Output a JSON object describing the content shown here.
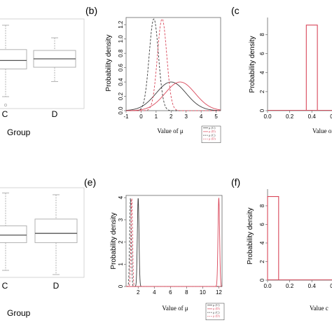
{
  "colors": {
    "black": "#3a3a3a",
    "red": "#d9475a",
    "box_stroke": "#aaaaaa",
    "box_median": "#555555",
    "axis": "#666666"
  },
  "panels": {
    "a_group_label": "Group",
    "a_categories": [
      "C",
      "D"
    ],
    "b_letter": "(b)",
    "c_letter": "(c",
    "d_group_label": "Group",
    "d_categories": [
      "C",
      "D"
    ],
    "e_letter": "(e)",
    "f_letter": "(f)",
    "c_xlabel": "Value of",
    "f_xlabel": "Value c"
  },
  "chart_data": [
    {
      "panel": "a",
      "type": "box",
      "categories": [
        "C",
        "D"
      ],
      "xlabel": "Group",
      "boxes": [
        {
          "category": "C",
          "whisker_low": 0.1,
          "q1": 0.43,
          "median": 0.53,
          "q3": 0.66,
          "whisker_high": 0.95,
          "outlier": 0.0
        },
        {
          "category": "D",
          "whisker_low": 0.28,
          "q1": 0.45,
          "median": 0.55,
          "q3": 0.65,
          "whisker_high": 0.8
        }
      ]
    },
    {
      "panel": "b",
      "type": "line",
      "title": "(b)",
      "xlabel": "Value of μ",
      "ylabel": "Probability density",
      "xlim": [
        -1,
        5.3
      ],
      "ylim": [
        0,
        1.3
      ],
      "xticks": [
        "-1",
        "0",
        "1",
        "2",
        "3",
        "4",
        "5"
      ],
      "yticks": [
        "0.0",
        "0.2",
        "0.4",
        "0.6",
        "0.8",
        "1.0",
        "1.2"
      ],
      "legend_position": "bottom-right",
      "series": [
        {
          "name": "μ (C)",
          "color": "#3a3a3a",
          "dash": false,
          "mean": 2.0,
          "sd": 1.0,
          "peak": 0.4
        },
        {
          "name": "μ (D)",
          "color": "#d9475a",
          "dash": false,
          "mean": 2.6,
          "sd": 1.0,
          "peak": 0.4
        },
        {
          "name": "μ (C)",
          "color": "#3a3a3a",
          "dash": true,
          "mean": 0.85,
          "sd": 0.31,
          "peak": 1.28
        },
        {
          "name": "μ (D)",
          "color": "#d9475a",
          "dash": true,
          "mean": 1.4,
          "sd": 0.31,
          "peak": 1.28
        }
      ]
    },
    {
      "panel": "c",
      "type": "histogram",
      "title": "(c",
      "ylabel": "Probability density",
      "xlabel": "Value of",
      "xlim": [
        0,
        0.62
      ],
      "ylim": [
        0,
        9.8
      ],
      "xticks": [
        "0.0",
        "0.2",
        "0.4",
        "0.6"
      ],
      "yticks": [
        "0",
        "2",
        "4",
        "6",
        "8"
      ],
      "bins": [
        {
          "x0": 0.35,
          "x1": 0.45,
          "height": 9.0
        }
      ]
    },
    {
      "panel": "d",
      "type": "box",
      "categories": [
        "C",
        "D"
      ],
      "xlabel": "Group",
      "boxes": [
        {
          "category": "C",
          "whisker_low": 0.05,
          "q1": 0.38,
          "median": 0.47,
          "q3": 0.58,
          "whisker_high": 0.97
        },
        {
          "category": "D",
          "whisker_low": 0.0,
          "q1": 0.38,
          "median": 0.49,
          "q3": 0.66,
          "whisker_high": 0.95
        }
      ]
    },
    {
      "panel": "e",
      "type": "line",
      "title": "(e)",
      "xlabel": "Value of μ",
      "ylabel": "Probability density",
      "xlim": [
        0.5,
        12.4
      ],
      "ylim": [
        0,
        4.1
      ],
      "xticks": [
        "2",
        "4",
        "6",
        "8",
        "10",
        "12"
      ],
      "yticks": [
        "0",
        "1",
        "2",
        "3",
        "4"
      ],
      "legend_position": "bottom-right",
      "series": [
        {
          "name": "μ (C)",
          "color": "#3a3a3a",
          "dash": false,
          "mean": 2.0,
          "sd": 0.1,
          "peak": 4.0
        },
        {
          "name": "μ (D)",
          "color": "#d9475a",
          "dash": false,
          "mean": 12.0,
          "sd": 0.1,
          "peak": 4.0
        },
        {
          "name": "μ (C)",
          "color": "#3a3a3a",
          "dash": true,
          "mean": 1.05,
          "sd": 0.1,
          "peak": 4.0
        },
        {
          "name": "μ (D)",
          "color": "#d9475a",
          "dash": true,
          "mean": 1.2,
          "sd": 0.1,
          "peak": 4.0
        }
      ]
    },
    {
      "panel": "f",
      "type": "histogram",
      "title": "(f)",
      "ylabel": "Probability density",
      "xlabel": "Value c",
      "xlim": [
        0,
        0.62
      ],
      "ylim": [
        0,
        9.8
      ],
      "xticks": [
        "0.0",
        "0.2",
        "0.4",
        "0.6"
      ],
      "yticks": [
        "0",
        "2",
        "4",
        "6",
        "8"
      ],
      "bins": [
        {
          "x0": 0.0,
          "x1": 0.1,
          "height": 9.0
        }
      ]
    }
  ]
}
